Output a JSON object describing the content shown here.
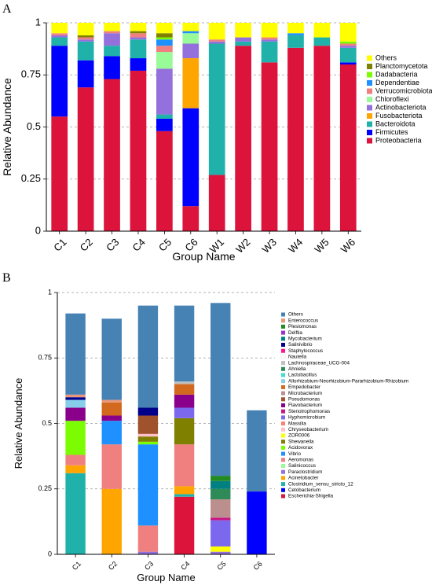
{
  "chart_data": [
    {
      "panel": "A",
      "type": "bar",
      "stacked": true,
      "xlabel": "Group Name",
      "ylabel": "Relative Abundance",
      "ylim": [
        0,
        1
      ],
      "yticks": [
        "0",
        "0.25",
        "0.5",
        "0.75",
        "1"
      ],
      "grid": "dashed horizontal",
      "legend": "right",
      "categories": [
        "C1",
        "C2",
        "C3",
        "C4",
        "C5",
        "C6",
        "W1",
        "W2",
        "W3",
        "W4",
        "W5",
        "W6"
      ],
      "series": [
        {
          "name": "Proteobacteria",
          "color": "#DC143C",
          "values": [
            0.55,
            0.69,
            0.73,
            0.77,
            0.48,
            0.12,
            0.27,
            0.89,
            0.81,
            0.88,
            0.89,
            0.8
          ]
        },
        {
          "name": "Firmicutes",
          "color": "#0000FF",
          "values": [
            0.34,
            0.13,
            0.11,
            0.06,
            0.06,
            0.47,
            0.0,
            0.0,
            0.0,
            0.0,
            0.0,
            0.01
          ]
        },
        {
          "name": "Fusobacteriota",
          "color": "#FFA500",
          "values": [
            0.0,
            0.0,
            0.0,
            0.0,
            0.0,
            0.24,
            0.0,
            0.0,
            0.0,
            0.0,
            0.0,
            0.0
          ]
        },
        {
          "name": "Bacteroidota",
          "color": "#20B2AA",
          "values": [
            0.04,
            0.09,
            0.05,
            0.09,
            0.02,
            0.0,
            0.63,
            0.02,
            0.1,
            0.06,
            0.04,
            0.07
          ]
        },
        {
          "name": "Actinobacteriota",
          "color": "#9370DB",
          "values": [
            0.01,
            0.01,
            0.06,
            0.01,
            0.22,
            0.07,
            0.01,
            0.02,
            0.01,
            0.0,
            0.0,
            0.01
          ]
        },
        {
          "name": "Chloroflexi",
          "color": "#98FB98",
          "values": [
            0.0,
            0.0,
            0.0,
            0.0,
            0.08,
            0.05,
            0.0,
            0.0,
            0.0,
            0.0,
            0.0,
            0.0
          ]
        },
        {
          "name": "Verrucomicrobiota",
          "color": "#F08080",
          "values": [
            0.01,
            0.01,
            0.01,
            0.02,
            0.03,
            0.0,
            0.01,
            0.0,
            0.01,
            0.0,
            0.0,
            0.01
          ]
        },
        {
          "name": "Dependentiae",
          "color": "#1E90FF",
          "values": [
            0.0,
            0.0,
            0.0,
            0.0,
            0.03,
            0.01,
            0.0,
            0.0,
            0.0,
            0.01,
            0.0,
            0.0
          ]
        },
        {
          "name": "Dadabacteria",
          "color": "#7CFC00",
          "values": [
            0.0,
            0.0,
            0.0,
            0.0,
            0.01,
            0.0,
            0.0,
            0.0,
            0.0,
            0.0,
            0.0,
            0.01
          ]
        },
        {
          "name": "Planctomycetota",
          "color": "#808000",
          "values": [
            0.0,
            0.01,
            0.0,
            0.01,
            0.02,
            0.0,
            0.0,
            0.0,
            0.0,
            0.0,
            0.0,
            0.0
          ]
        },
        {
          "name": "Others",
          "color": "#FFFF00",
          "values": [
            0.05,
            0.06,
            0.04,
            0.04,
            0.05,
            0.04,
            0.08,
            0.07,
            0.07,
            0.05,
            0.07,
            0.09
          ]
        }
      ],
      "legend_order": [
        "Others",
        "Planctomycetota",
        "Dadabacteria",
        "Dependentiae",
        "Verrucomicrobiota",
        "Chloroflexi",
        "Actinobacteriota",
        "Fusobacteriota",
        "Bacteroidota",
        "Firmicutes",
        "Proteobacteria"
      ]
    },
    {
      "panel": "B",
      "type": "bar",
      "stacked": true,
      "xlabel": "Group Name",
      "ylabel": "Relative Abundance",
      "ylim": [
        0,
        1
      ],
      "yticks": [
        "0",
        "0.25",
        "0.5",
        "0.75",
        "1"
      ],
      "grid": "dashed horizontal",
      "legend": "right",
      "categories": [
        "C1",
        "C2",
        "C3",
        "C4",
        "C5",
        "C6"
      ],
      "series": [
        {
          "name": "Escherichia-Shigella",
          "color": "#DC143C",
          "values": [
            0.0,
            0.0,
            0.0,
            0.22,
            0.0,
            0.0
          ]
        },
        {
          "name": "Cetobacterium",
          "color": "#0000FF",
          "values": [
            0.0,
            0.0,
            0.0,
            0.0,
            0.0,
            0.24
          ]
        },
        {
          "name": "Clostridium_sensu_stricto_12",
          "color": "#20B2AA",
          "values": [
            0.31,
            0.0,
            0.0,
            0.01,
            0.0,
            0.0
          ]
        },
        {
          "name": "Acinetobacter",
          "color": "#FFA500",
          "values": [
            0.03,
            0.25,
            0.0,
            0.03,
            0.0,
            0.0
          ]
        },
        {
          "name": "Paraclostridium",
          "color": "#9370DB",
          "values": [
            0.0,
            0.0,
            0.01,
            0.0,
            0.01,
            0.0
          ]
        },
        {
          "name": "Salinicoccus",
          "color": "#98FB98",
          "values": [
            0.0,
            0.0,
            0.0,
            0.0,
            0.0,
            0.0
          ]
        },
        {
          "name": "Aeromonas",
          "color": "#F08080",
          "values": [
            0.04,
            0.17,
            0.1,
            0.16,
            0.0,
            0.0
          ]
        },
        {
          "name": "Vibrio",
          "color": "#1E90FF",
          "values": [
            0.0,
            0.09,
            0.31,
            0.0,
            0.0,
            0.0
          ]
        },
        {
          "name": "Acidovorax",
          "color": "#7CFC00",
          "values": [
            0.13,
            0.0,
            0.01,
            0.0,
            0.0,
            0.0
          ]
        },
        {
          "name": "Shewanella",
          "color": "#808000",
          "values": [
            0.0,
            0.0,
            0.02,
            0.1,
            0.0,
            0.0
          ]
        },
        {
          "name": "ZOR0006",
          "color": "#FFFF00",
          "values": [
            0.0,
            0.0,
            0.0,
            0.0,
            0.02,
            0.0
          ]
        },
        {
          "name": "Chryseobacterium",
          "color": "#FFC0CB",
          "values": [
            0.0,
            0.0,
            0.01,
            0.0,
            0.0,
            0.0
          ]
        },
        {
          "name": "Massilia",
          "color": "#FA8072",
          "values": [
            0.0,
            0.0,
            0.0,
            0.0,
            0.0,
            0.0
          ]
        },
        {
          "name": "Hyphomicrobium",
          "color": "#7B68EE",
          "values": [
            0.0,
            0.0,
            0.0,
            0.04,
            0.1,
            0.0
          ]
        },
        {
          "name": "Stenotrophomonas",
          "color": "#C71585",
          "values": [
            0.0,
            0.0,
            0.0,
            0.0,
            0.01,
            0.0
          ]
        },
        {
          "name": "Pseudomonas",
          "color": "#A0522D",
          "values": [
            0.0,
            0.0,
            0.07,
            0.0,
            0.0,
            0.0
          ]
        },
        {
          "name": "Flavobacterium",
          "color": "#8B008B",
          "values": [
            0.05,
            0.02,
            0.0,
            0.05,
            0.0,
            0.0
          ]
        },
        {
          "name": "Microbacterium",
          "color": "#BC8F8F",
          "values": [
            0.0,
            0.0,
            0.0,
            0.0,
            0.07,
            0.0
          ]
        },
        {
          "name": "Empedobacter",
          "color": "#D2691E",
          "values": [
            0.0,
            0.05,
            0.0,
            0.04,
            0.0,
            0.0
          ]
        },
        {
          "name": "Allorhizobium-Neorhizobium-Pararhizobium-Rhizobium",
          "color": "#87CEEB",
          "values": [
            0.03,
            0.0,
            0.0,
            0.0,
            0.0,
            0.0
          ]
        },
        {
          "name": "Lactobacillus",
          "color": "#40E0D0",
          "values": [
            0.0,
            0.0,
            0.0,
            0.0,
            0.0,
            0.0
          ]
        },
        {
          "name": "Ahniella",
          "color": "#2E8B57",
          "values": [
            0.0,
            0.0,
            0.0,
            0.0,
            0.04,
            0.0
          ]
        },
        {
          "name": "Lachnospiraceae_UCG-004",
          "color": "#C0C0C0",
          "values": [
            0.0,
            0.0,
            0.0,
            0.01,
            0.0,
            0.0
          ]
        },
        {
          "name": "Nautella",
          "color": "#FFFFFF",
          "values": [
            0.0,
            0.0,
            0.0,
            0.0,
            0.0,
            0.0
          ]
        },
        {
          "name": "Staphylococcus",
          "color": "#FF1493",
          "values": [
            0.0,
            0.0,
            0.0,
            0.0,
            0.0,
            0.0
          ]
        },
        {
          "name": "Salinivibrio",
          "color": "#00008B",
          "values": [
            0.01,
            0.0,
            0.03,
            0.0,
            0.0,
            0.0
          ]
        },
        {
          "name": "Mycobacterium",
          "color": "#008080",
          "values": [
            0.0,
            0.0,
            0.0,
            0.0,
            0.03,
            0.0
          ]
        },
        {
          "name": "Delftia",
          "color": "#9932CC",
          "values": [
            0.0,
            0.0,
            0.0,
            0.0,
            0.0,
            0.0
          ]
        },
        {
          "name": "Plesiomonas",
          "color": "#228B22",
          "values": [
            0.0,
            0.0,
            0.0,
            0.0,
            0.02,
            0.0
          ]
        },
        {
          "name": "Enterococcus",
          "color": "#E9967A",
          "values": [
            0.01,
            0.01,
            0.0,
            0.0,
            0.0,
            0.0
          ]
        },
        {
          "name": "Others",
          "color": "#4682B4",
          "values": [
            0.31,
            0.31,
            0.39,
            0.29,
            0.66,
            0.31
          ]
        }
      ],
      "legend_order": [
        "Others",
        "Enterococcus",
        "Plesiomonas",
        "Delftia",
        "Mycobacterium",
        "Salinivibrio",
        "Staphylococcus",
        "Nautella",
        "Lachnospiraceae_UCG-004",
        "Ahniella",
        "Lactobacillus",
        "Allorhizobium-Neorhizobium-Pararhizobium-Rhizobium",
        "Empedobacter",
        "Microbacterium",
        "Pseudomonas",
        "Flavobacterium",
        "Stenotrophomonas",
        "Hyphomicrobium",
        "Massilia",
        "Chryseobacterium",
        "ZOR0006",
        "Shewanella",
        "Acidovorax",
        "Vibrio",
        "Aeromonas",
        "Salinicoccus",
        "Paraclostridium",
        "Acinetobacter",
        "Clostridium_sensu_stricto_12",
        "Cetobacterium",
        "Escherichia-Shigella"
      ]
    }
  ],
  "panel_labels": {
    "a": "A",
    "b": "B"
  }
}
